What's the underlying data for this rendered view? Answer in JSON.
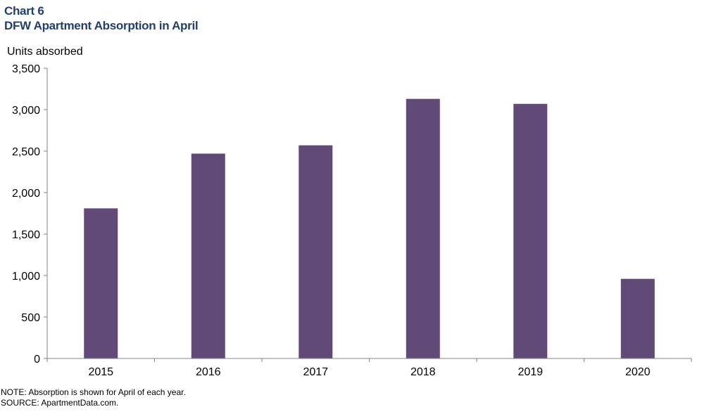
{
  "header": {
    "label": "Chart 6",
    "title": "DFW Apartment Absorption in April"
  },
  "footer": {
    "note": "NOTE: Absorption is shown for April of each year.",
    "source": "SOURCE: ApartmentData.com."
  },
  "chart_data": {
    "type": "bar",
    "title": "DFW Apartment Absorption in April",
    "ylabel": "Units absorbed",
    "xlabel": "",
    "categories": [
      "2015",
      "2016",
      "2017",
      "2018",
      "2019",
      "2020"
    ],
    "values": [
      1810,
      2470,
      2570,
      3130,
      3070,
      960
    ],
    "ylim": [
      0,
      3500
    ],
    "yticks": [
      0,
      500,
      1000,
      1500,
      2000,
      2500,
      3000,
      3500
    ],
    "ytick_labels": [
      "0",
      "500",
      "1,000",
      "1,500",
      "2,000",
      "2,500",
      "3,000",
      "3,500"
    ],
    "grid": false,
    "legend": "none",
    "bar_color": "#614a77"
  }
}
